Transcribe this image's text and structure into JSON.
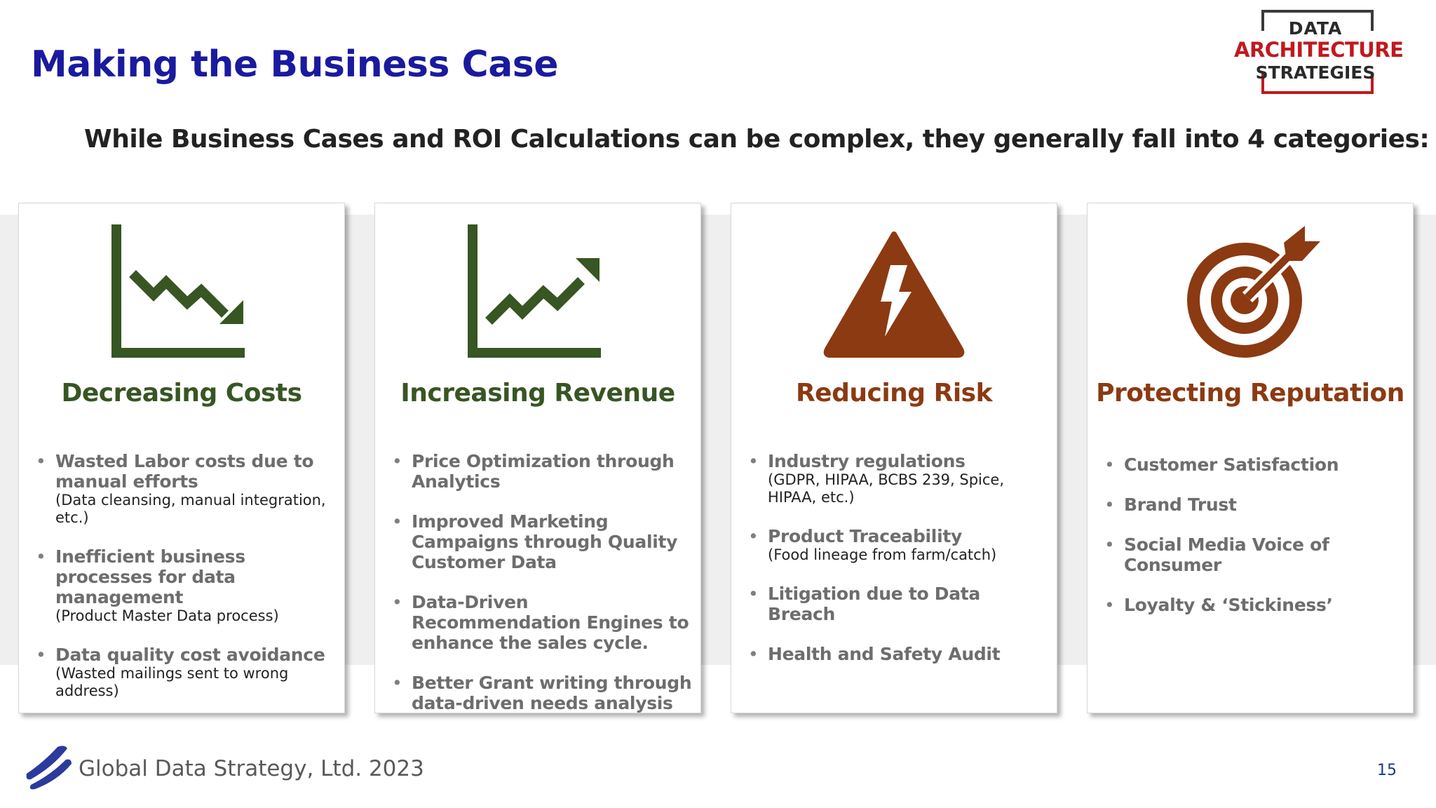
{
  "title": "Making the Business Case",
  "subtitle": "While Business Cases and ROI Calculations can be complex, they generally fall into 4 categories:",
  "logo": {
    "line1": "DATA",
    "line2": "ARCHITECTURE",
    "line3": "STRATEGIES"
  },
  "colors": {
    "title": "#1a1a9e",
    "green": "#375623",
    "brown": "#8b3a12",
    "logo_red": "#c0191f"
  },
  "cards": [
    {
      "icon": "chart-down-icon",
      "heading": "Decreasing Costs",
      "items": [
        {
          "main": "Wasted Labor costs due to manual efforts",
          "note": "(Data cleansing, manual integration, etc.)"
        },
        {
          "main": "Inefficient business processes for data management",
          "note": "(Product Master Data process)"
        },
        {
          "main": "Data quality cost avoidance",
          "note": "(Wasted mailings sent to wrong address)"
        }
      ]
    },
    {
      "icon": "chart-up-icon",
      "heading": "Increasing Revenue",
      "items": [
        {
          "main": "Price Optimization through Analytics"
        },
        {
          "main": "Improved Marketing Campaigns through Quality Customer Data"
        },
        {
          "main": "Data-Driven Recommendation Engines to enhance the sales cycle."
        },
        {
          "main": "Better Grant writing through data-driven needs analysis"
        }
      ]
    },
    {
      "icon": "warning-lightning-icon",
      "heading": "Reducing Risk",
      "items": [
        {
          "main": "Industry regulations",
          "note": "(GDPR, HIPAA, BCBS 239, Spice, HIPAA, etc.)"
        },
        {
          "main": "Product Traceability",
          "note": "(Food lineage from farm/catch)"
        },
        {
          "main": "Litigation due to Data Breach"
        },
        {
          "main": "Health and Safety Audit"
        }
      ]
    },
    {
      "icon": "target-icon",
      "heading": "Protecting Reputation",
      "items": [
        {
          "main": "Customer Satisfaction"
        },
        {
          "main": "Brand Trust"
        },
        {
          "main": "Social Media Voice of Consumer"
        },
        {
          "main": "Loyalty & ‘Stickiness’"
        }
      ]
    }
  ],
  "footer": {
    "company": "Global Data Strategy, Ltd. 2023",
    "page_number": "15"
  }
}
